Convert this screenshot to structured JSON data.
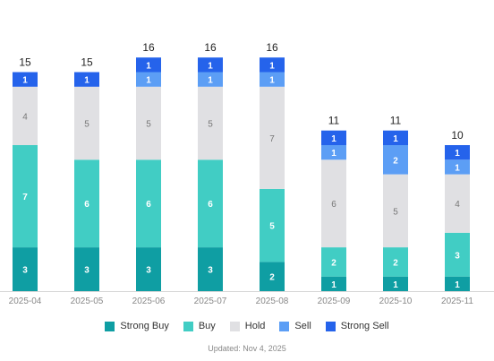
{
  "chart_data": {
    "type": "bar",
    "stacked": true,
    "categories": [
      "2025-04",
      "2025-05",
      "2025-06",
      "2025-07",
      "2025-08",
      "2025-09",
      "2025-10",
      "2025-11"
    ],
    "series": [
      {
        "name": "Strong Buy",
        "color": "#0f9ea3",
        "values": [
          3,
          3,
          3,
          3,
          2,
          1,
          1,
          1
        ]
      },
      {
        "name": "Buy",
        "color": "#41cdc4",
        "values": [
          7,
          6,
          6,
          6,
          5,
          2,
          2,
          3
        ]
      },
      {
        "name": "Hold",
        "color": "#e0e0e3",
        "values": [
          4,
          5,
          5,
          5,
          7,
          6,
          5,
          4
        ]
      },
      {
        "name": "Sell",
        "color": "#5c9ef5",
        "values": [
          0,
          0,
          1,
          1,
          1,
          1,
          2,
          1
        ]
      },
      {
        "name": "Strong Sell",
        "color": "#2563eb",
        "values": [
          1,
          1,
          1,
          1,
          1,
          1,
          1,
          1
        ]
      }
    ],
    "totals": [
      15,
      15,
      16,
      16,
      16,
      11,
      11,
      10
    ],
    "legend_position": "bottom"
  },
  "footer": {
    "updated": "Updated: Nov 4, 2025"
  }
}
